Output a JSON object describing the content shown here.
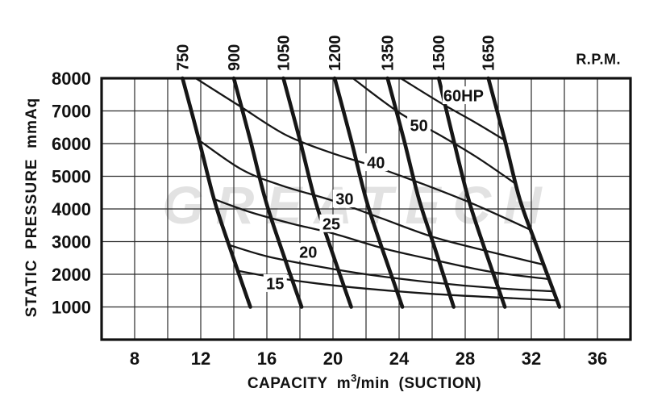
{
  "page": {
    "rpm_header": "R.P.M.",
    "watermark": "GREATECH",
    "y_axis_title": "STATIC  PRESSURE  mmAq",
    "x_axis_title_prefix": "CAPACITY  m",
    "x_axis_title_sup": "3",
    "x_axis_title_suffix": "/min  (SUCTION)"
  },
  "colors": {
    "line": "#161616",
    "grid": "#2b2b2b",
    "border": "#111111",
    "watermark": "#e2e2e2",
    "label_box": "#ffffff"
  },
  "chart_data": {
    "type": "line",
    "title": "",
    "xlabel": "CAPACITY m3/min (SUCTION)",
    "ylabel": "STATIC PRESSURE mmAq",
    "x_axis": {
      "min": 6,
      "max": 38,
      "grid_step": 2,
      "tick_labels": [
        8,
        12,
        16,
        20,
        24,
        28,
        32,
        36
      ]
    },
    "y_axis": {
      "min": 0,
      "max": 8000,
      "grid_step": 1000,
      "tick_labels": [
        8000,
        7000,
        6000,
        5000,
        4000,
        3000,
        2000,
        1000
      ]
    },
    "grid": "on",
    "rpm_unit": "R.P.M.",
    "rpm_curves": [
      {
        "label": "750",
        "points": [
          [
            10.9,
            8000
          ],
          [
            11.9,
            6100
          ],
          [
            12.8,
            4300
          ],
          [
            13.7,
            2900
          ],
          [
            15.0,
            1000
          ]
        ]
      },
      {
        "label": "900",
        "points": [
          [
            14.0,
            8000
          ],
          [
            15.0,
            6100
          ],
          [
            15.9,
            4300
          ],
          [
            16.8,
            2900
          ],
          [
            18.1,
            1000
          ]
        ]
      },
      {
        "label": "1050",
        "points": [
          [
            17.0,
            8000
          ],
          [
            18.0,
            6100
          ],
          [
            18.9,
            4300
          ],
          [
            19.8,
            2900
          ],
          [
            21.1,
            1000
          ]
        ]
      },
      {
        "label": "1200",
        "points": [
          [
            20.1,
            8000
          ],
          [
            21.1,
            6100
          ],
          [
            22.0,
            4300
          ],
          [
            22.9,
            2900
          ],
          [
            24.2,
            1000
          ]
        ]
      },
      {
        "label": "1350",
        "points": [
          [
            23.3,
            8000
          ],
          [
            24.3,
            6100
          ],
          [
            25.2,
            4300
          ],
          [
            26.1,
            2900
          ],
          [
            27.3,
            1000
          ]
        ]
      },
      {
        "label": "1500",
        "points": [
          [
            26.4,
            8000
          ],
          [
            27.3,
            6100
          ],
          [
            28.2,
            4300
          ],
          [
            29.1,
            2900
          ],
          [
            30.4,
            1000
          ]
        ]
      },
      {
        "label": "1650",
        "points": [
          [
            29.4,
            8000
          ],
          [
            30.4,
            6100
          ],
          [
            31.3,
            4300
          ],
          [
            32.3,
            2900
          ],
          [
            33.7,
            1000
          ]
        ]
      }
    ],
    "hp_curves": [
      {
        "label": "15",
        "label_at": [
          16.5,
          1730
        ],
        "points": [
          [
            14.3,
            2100
          ],
          [
            16.5,
            1900
          ],
          [
            19.0,
            1720
          ],
          [
            22.0,
            1560
          ],
          [
            26.0,
            1400
          ],
          [
            30.0,
            1290
          ],
          [
            33.6,
            1200
          ]
        ]
      },
      {
        "label": "20",
        "label_at": [
          18.5,
          2690
        ],
        "points": [
          [
            13.7,
            2900
          ],
          [
            16.0,
            2550
          ],
          [
            19.0,
            2250
          ],
          [
            22.0,
            2000
          ],
          [
            26.0,
            1750
          ],
          [
            30.0,
            1570
          ],
          [
            33.3,
            1480
          ]
        ]
      },
      {
        "label": "25",
        "label_at": [
          19.9,
          3560
        ],
        "points": [
          [
            12.8,
            4300
          ],
          [
            15.0,
            3900
          ],
          [
            17.5,
            3550
          ],
          [
            20.0,
            3250
          ],
          [
            23.0,
            2800
          ],
          [
            26.0,
            2450
          ],
          [
            29.5,
            2080
          ],
          [
            33.1,
            1850
          ]
        ]
      },
      {
        "label": "30",
        "label_at": [
          20.7,
          4320
        ],
        "points": [
          [
            11.9,
            6100
          ],
          [
            14.5,
            5200
          ],
          [
            17.0,
            4700
          ],
          [
            20.0,
            4250
          ],
          [
            23.0,
            3700
          ],
          [
            26.0,
            3150
          ],
          [
            29.0,
            2750
          ],
          [
            32.7,
            2300
          ]
        ]
      },
      {
        "label": "40",
        "label_at": [
          22.6,
          5430
        ],
        "points": [
          [
            11.7,
            8000
          ],
          [
            14.5,
            7100
          ],
          [
            17.2,
            6250
          ],
          [
            20.0,
            5700
          ],
          [
            22.5,
            5300
          ],
          [
            25.5,
            4750
          ],
          [
            28.5,
            4150
          ],
          [
            32.0,
            3350
          ]
        ]
      },
      {
        "label": "50",
        "label_at": [
          25.2,
          6570
        ],
        "points": [
          [
            21.2,
            8000
          ],
          [
            24.0,
            6950
          ],
          [
            26.5,
            6250
          ],
          [
            28.8,
            5550
          ],
          [
            31.1,
            4750
          ]
        ]
      },
      {
        "label": "60HP",
        "label_at": [
          27.9,
          7480
        ],
        "points": [
          [
            24.1,
            8000
          ],
          [
            26.5,
            7250
          ],
          [
            28.6,
            6650
          ],
          [
            30.4,
            6100
          ]
        ]
      }
    ]
  }
}
